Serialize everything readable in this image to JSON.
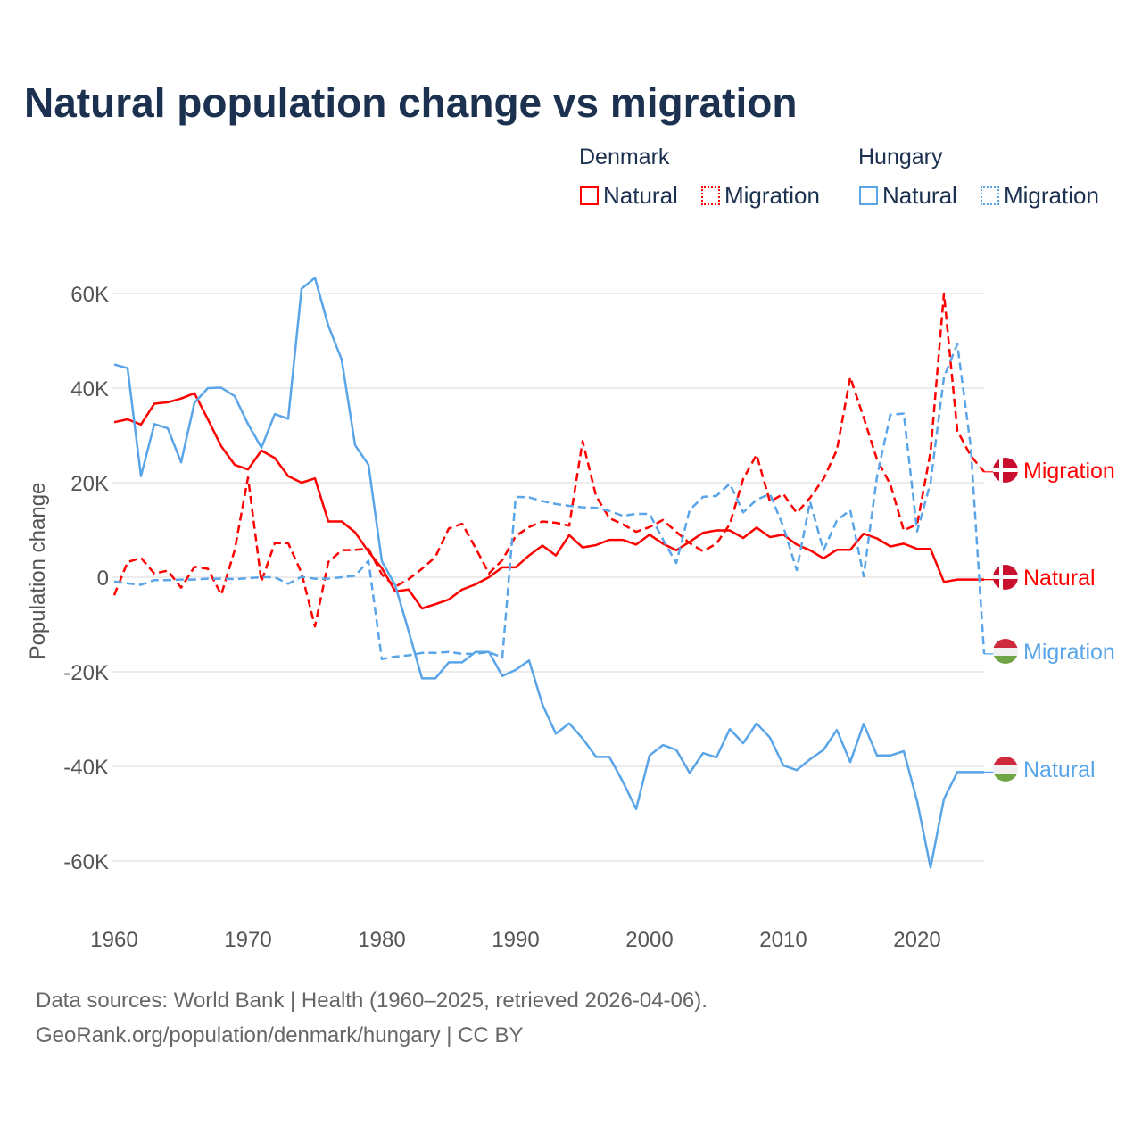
{
  "chart_data": {
    "type": "line",
    "title": "Natural population change vs migration",
    "xlabel": "",
    "ylabel": "Population change",
    "xlim": [
      1960,
      2025
    ],
    "ylim": [
      -70000,
      65000
    ],
    "yticks": [
      60000,
      40000,
      20000,
      0,
      -20000,
      -40000,
      -60000
    ],
    "ytick_labels": [
      "60K",
      "40K",
      "20K",
      "0",
      "-20K",
      "-40K",
      "-60K"
    ],
    "xticks": [
      1960,
      1970,
      1980,
      1990,
      2000,
      2010,
      2020
    ],
    "xtick_labels": [
      "1960",
      "1970",
      "1980",
      "1990",
      "2000",
      "2010",
      "2020"
    ],
    "grid": true,
    "legend": {
      "placement": "top-right",
      "groups": [
        {
          "country": "Denmark",
          "items": [
            "Natural",
            "Migration"
          ]
        },
        {
          "country": "Hungary",
          "items": [
            "Natural",
            "Migration"
          ]
        }
      ]
    },
    "x": [
      1960,
      1961,
      1962,
      1963,
      1964,
      1965,
      1966,
      1967,
      1968,
      1969,
      1970,
      1971,
      1972,
      1973,
      1974,
      1975,
      1976,
      1977,
      1978,
      1979,
      1980,
      1981,
      1982,
      1983,
      1984,
      1985,
      1986,
      1987,
      1988,
      1989,
      1990,
      1991,
      1992,
      1993,
      1994,
      1995,
      1996,
      1997,
      1998,
      1999,
      2000,
      2001,
      2002,
      2003,
      2004,
      2005,
      2006,
      2007,
      2008,
      2009,
      2010,
      2011,
      2012,
      2013,
      2014,
      2015,
      2016,
      2017,
      2018,
      2019,
      2020,
      2021,
      2022,
      2023,
      2024,
      2025
    ],
    "series": [
      {
        "name": "Natural",
        "country": "Denmark",
        "color": "#ff0000",
        "dash": false,
        "end_label": "Natural",
        "flag": "denmark",
        "values": [
          32800,
          33400,
          32300,
          36700,
          37000,
          37800,
          38900,
          33400,
          27700,
          23800,
          22800,
          26800,
          25200,
          21400,
          20000,
          20900,
          11800,
          11800,
          9500,
          5400,
          1900,
          -3000,
          -2600,
          -6600,
          -5700,
          -4700,
          -2600,
          -1500,
          0,
          2100,
          2100,
          4600,
          6700,
          4600,
          8900,
          6300,
          6800,
          7900,
          7900,
          6900,
          9000,
          7100,
          5700,
          7500,
          9400,
          9900,
          9900,
          8300,
          10500,
          8500,
          9000,
          6900,
          5700,
          4000,
          5800,
          5800,
          9200,
          8200,
          6500,
          7100,
          6000,
          6000,
          -1000,
          -500,
          -500,
          -500
        ]
      },
      {
        "name": "Migration",
        "country": "Denmark",
        "color": "#ff0000",
        "dash": true,
        "end_label": "Migration",
        "flag": "denmark",
        "values": [
          -3800,
          3200,
          4100,
          800,
          1400,
          -2200,
          2200,
          1800,
          -3700,
          5700,
          21100,
          -900,
          7200,
          7200,
          900,
          -10400,
          3200,
          5700,
          5800,
          6000,
          600,
          -2000,
          -400,
          1800,
          4300,
          10300,
          11300,
          6200,
          800,
          3600,
          8700,
          10600,
          11800,
          11500,
          10900,
          28800,
          17200,
          12500,
          11200,
          9600,
          10600,
          12100,
          9600,
          7200,
          5500,
          7100,
          11200,
          20800,
          25900,
          16000,
          17600,
          13600,
          16800,
          20800,
          26900,
          42300,
          33800,
          24900,
          19600,
          9900,
          11200,
          26500,
          60000,
          31000,
          25700,
          22300
        ]
      },
      {
        "name": "Natural",
        "country": "Hungary",
        "color": "#5aa5e8",
        "dash": false,
        "end_label": "Natural",
        "flag": "hungary",
        "values": [
          45000,
          44200,
          21400,
          32400,
          31500,
          24300,
          36900,
          40000,
          40100,
          38300,
          32400,
          27400,
          34500,
          33500,
          61000,
          63300,
          53200,
          46000,
          27900,
          23800,
          3400,
          -1700,
          -11400,
          -21400,
          -21400,
          -18000,
          -18000,
          -15800,
          -15800,
          -20900,
          -19600,
          -17600,
          -26900,
          -33100,
          -30900,
          -34100,
          -38000,
          -38000,
          -43200,
          -49000,
          -37700,
          -35500,
          -36500,
          -41400,
          -37200,
          -38100,
          -32100,
          -35100,
          -30900,
          -33900,
          -39800,
          -40800,
          -38500,
          -36500,
          -32300,
          -39100,
          -31000,
          -37700,
          -37700,
          -36800,
          -47400,
          -61400,
          -46900,
          -41200,
          -41200,
          -41200
        ]
      },
      {
        "name": "Migration",
        "country": "Hungary",
        "color": "#5aa5e8",
        "dash": true,
        "end_label": "Migration",
        "flag": "hungary",
        "values": [
          -900,
          -1300,
          -1600,
          -600,
          -600,
          -500,
          -500,
          -300,
          -300,
          -400,
          -200,
          0,
          0,
          -1400,
          100,
          -300,
          -300,
          0,
          300,
          3500,
          -17300,
          -16800,
          -16500,
          -16000,
          -16000,
          -15800,
          -16200,
          -16200,
          -15800,
          -17000,
          17000,
          16900,
          16100,
          15500,
          15100,
          14800,
          14700,
          14000,
          13000,
          13400,
          13400,
          8000,
          3000,
          14200,
          17000,
          17200,
          19800,
          13700,
          16400,
          17600,
          10700,
          1500,
          16000,
          5700,
          12000,
          14200,
          200,
          21300,
          34400,
          34600,
          9700,
          20000,
          42300,
          49300,
          27700,
          -16200
        ]
      }
    ]
  },
  "legend_labels": {
    "denmark": "Denmark",
    "hungary": "Hungary",
    "dk_natural": "Natural",
    "dk_migration": "Migration",
    "hu_natural": "Natural",
    "hu_migration": "Migration"
  },
  "footer": {
    "line1": "Data sources: World Bank | Health (1960–2025, retrieved 2026-04-06).",
    "line2": "GeoRank.org/population/denmark/hungary | CC BY"
  },
  "colors": {
    "title": "#1c3150",
    "denmark": "#ff0000",
    "hungary": "#5aa5e8",
    "grid": "#e6e6e6",
    "axis_text": "#555555"
  }
}
